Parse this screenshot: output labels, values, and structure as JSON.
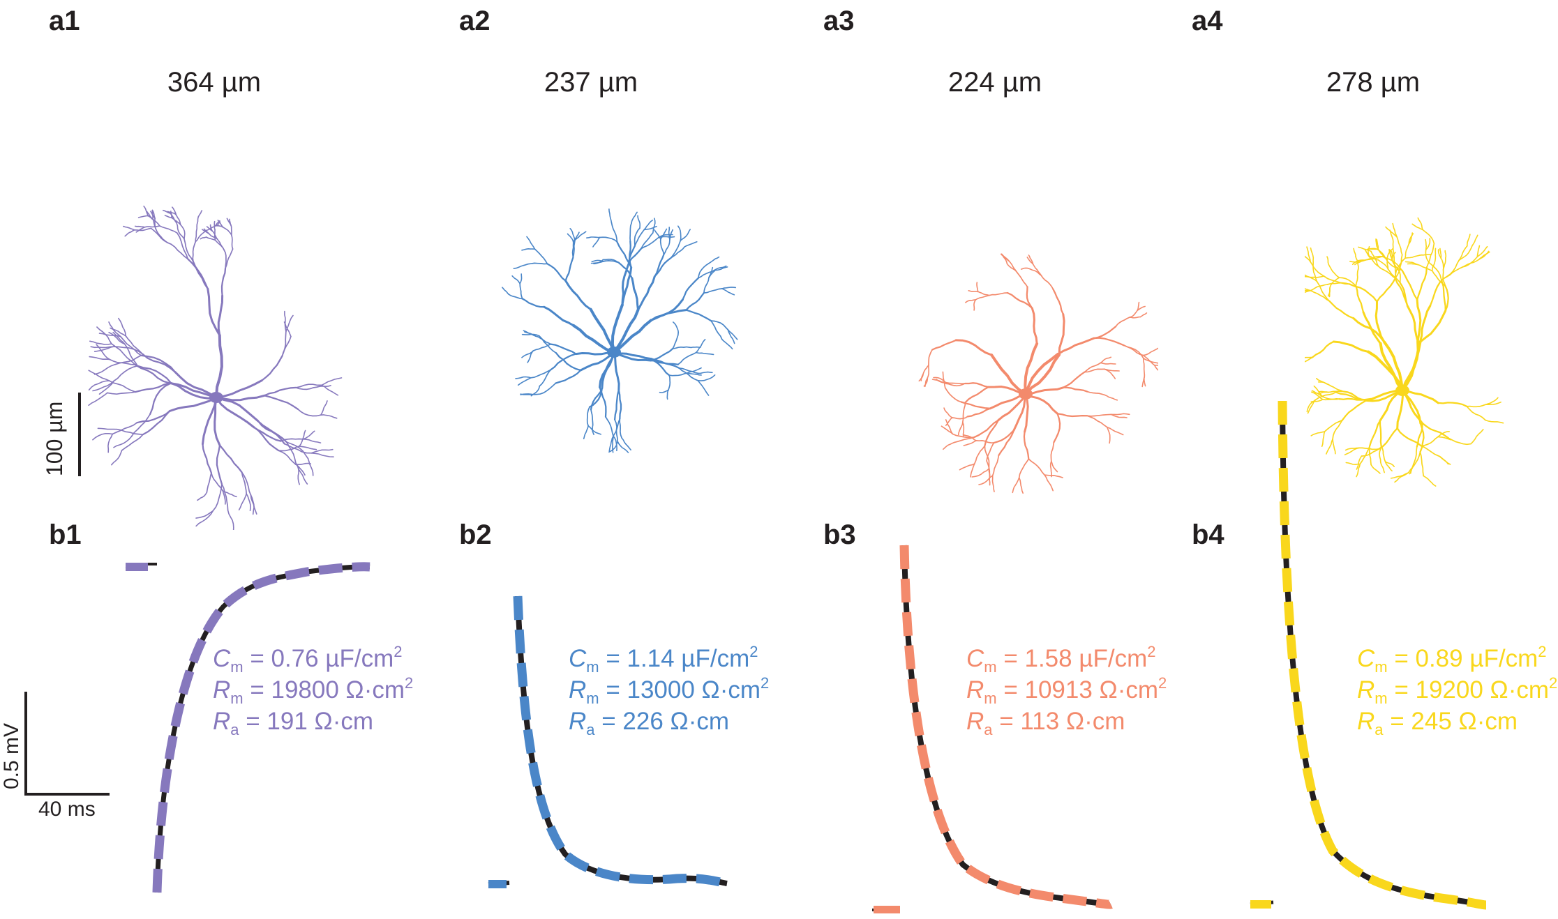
{
  "colors": {
    "cell1": "#8678bd",
    "cell2": "#4a86c8",
    "cell3": "#f38a6c",
    "cell4": "#f9d71c",
    "trace": "#231f20"
  },
  "scale_bars": {
    "morphology": "100 µm",
    "voltage": "0.5 mV",
    "time": "40 ms"
  },
  "cells": [
    {
      "morph_label": "a1",
      "trace_label": "b1",
      "length": "364 µm",
      "cm_sym": "C",
      "cm_sub": "m",
      "cm_value": " = 0.76 µF/cm",
      "cm_sup": "2",
      "rm_sym": "R",
      "rm_sub": "m",
      "rm_value": " = 19800 Ω·cm",
      "rm_sup": "2",
      "ra_sym": "R",
      "ra_sub": "a",
      "ra_value": " = 191 Ω·cm"
    },
    {
      "morph_label": "a2",
      "trace_label": "b2",
      "length": "237 µm",
      "cm_sym": "C",
      "cm_sub": "m",
      "cm_value": " = 1.14 µF/cm",
      "cm_sup": "2",
      "rm_sym": "R",
      "rm_sub": "m",
      "rm_value": " = 13000 Ω·cm",
      "rm_sup": "2",
      "ra_sym": "R",
      "ra_sub": "a",
      "ra_value": " = 226 Ω·cm"
    },
    {
      "morph_label": "a3",
      "trace_label": "b3",
      "length": "224 µm",
      "cm_sym": "C",
      "cm_sub": "m",
      "cm_value": " = 1.58 µF/cm",
      "cm_sup": "2",
      "rm_sym": "R",
      "rm_sub": "m",
      "rm_value": " = 10913 Ω·cm",
      "rm_sup": "2",
      "ra_sym": "R",
      "ra_sub": "a",
      "ra_value": " = 113 Ω·cm"
    },
    {
      "morph_label": "a4",
      "trace_label": "b4",
      "length": "278 µm",
      "cm_sym": "C",
      "cm_sub": "m",
      "cm_value": " = 0.89 µF/cm",
      "cm_sup": "2",
      "rm_sym": "R",
      "rm_sub": "m",
      "rm_value": " = 19200 Ω·cm",
      "rm_sup": "2",
      "ra_sym": "R",
      "ra_sub": "a",
      "ra_value": " = 245 Ω·cm"
    }
  ]
}
